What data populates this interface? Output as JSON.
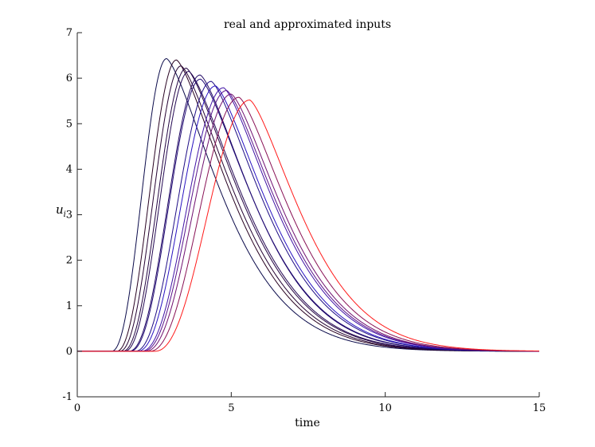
{
  "chart_data": {
    "type": "line",
    "title": "real and approximated inputs",
    "xlabel": "time",
    "ylabel": {
      "main": "u",
      "sub": "i"
    },
    "xlim": [
      0,
      15
    ],
    "ylim": [
      -1,
      7
    ],
    "xticks": [
      0,
      5,
      10,
      15
    ],
    "yticks": [
      -1,
      0,
      1,
      2,
      3,
      4,
      5,
      6,
      7
    ],
    "grid": false,
    "legend": "none",
    "colors": {
      "start": "#0a0a4a",
      "dark": "#2a0010",
      "blue": "#1414d8",
      "end": "#ff1a1a"
    },
    "series": [
      {
        "peak_time": 2.9,
        "peak_value": 6.43,
        "onset": 1.1,
        "decay_end": 11.5
      },
      {
        "peak_time": 3.22,
        "peak_value": 6.4,
        "onset": 1.26,
        "decay_end": 11.8
      },
      {
        "peak_time": 3.37,
        "peak_value": 6.27,
        "onset": 1.36,
        "decay_end": 12.0
      },
      {
        "peak_time": 3.54,
        "peak_value": 6.22,
        "onset": 1.46,
        "decay_end": 12.2
      },
      {
        "peak_time": 3.62,
        "peak_value": 6.15,
        "onset": 1.52,
        "decay_end": 12.3
      },
      {
        "peak_time": 3.99,
        "peak_value": 6.07,
        "onset": 1.66,
        "decay_end": 12.5
      },
      {
        "peak_time": 4.0,
        "peak_value": 5.98,
        "onset": 1.7,
        "decay_end": 12.6
      },
      {
        "peak_time": 4.35,
        "peak_value": 5.93,
        "onset": 1.86,
        "decay_end": 12.8
      },
      {
        "peak_time": 4.49,
        "peak_value": 5.83,
        "onset": 1.94,
        "decay_end": 12.9
      },
      {
        "peak_time": 4.75,
        "peak_value": 5.79,
        "onset": 2.06,
        "decay_end": 13.1
      },
      {
        "peak_time": 4.85,
        "peak_value": 5.73,
        "onset": 2.12,
        "decay_end": 13.2
      },
      {
        "peak_time": 5.0,
        "peak_value": 5.65,
        "onset": 2.2,
        "decay_end": 13.3
      },
      {
        "peak_time": 5.25,
        "peak_value": 5.58,
        "onset": 2.33,
        "decay_end": 13.5
      },
      {
        "peak_time": 5.6,
        "peak_value": 5.52,
        "onset": 2.5,
        "decay_end": 13.8
      }
    ]
  }
}
